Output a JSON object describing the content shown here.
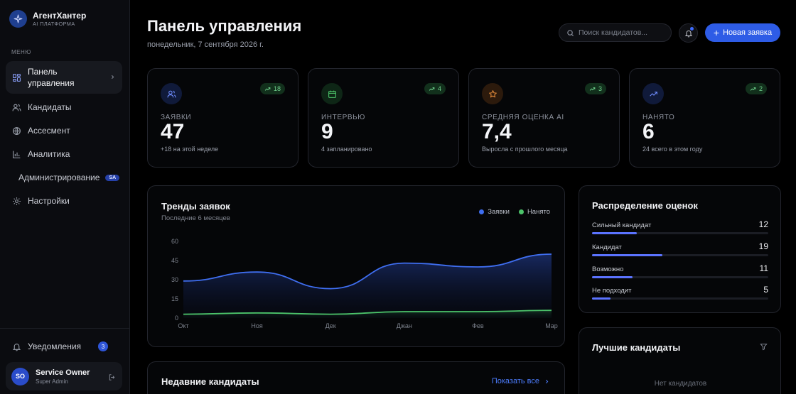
{
  "brand": {
    "name": "АгентХантер",
    "subtitle": "AI ПЛАТФОРМА"
  },
  "menu_label": "МЕНЮ",
  "nav": [
    {
      "label": "Панель управления",
      "icon": "dashboard-icon",
      "active": true
    },
    {
      "label": "Кандидаты",
      "icon": "users-icon"
    },
    {
      "label": "Ассесмент",
      "icon": "globe-icon"
    },
    {
      "label": "Аналитика",
      "icon": "bar-chart-icon"
    },
    {
      "label": "Администрирование",
      "badge": "SA"
    },
    {
      "label": "Настройки",
      "icon": "gear-icon"
    }
  ],
  "notifications": {
    "label": "Уведомления",
    "count": "3"
  },
  "user": {
    "initials": "SO",
    "name": "Service Owner",
    "role": "Super Admin"
  },
  "header": {
    "title": "Панель управления",
    "date": "понедельник, 7 сентября 2026 г.",
    "search_placeholder": "Поиск кандидатов...",
    "new_button": "Новая заявка"
  },
  "stats": [
    {
      "label": "ЗАЯВКИ",
      "value": "47",
      "sub": "+18 на этой неделе",
      "trend": "18",
      "icon": "users-icon",
      "color": "#5b7fff"
    },
    {
      "label": "ИНТЕРВЬЮ",
      "value": "9",
      "sub": "4 запланировано",
      "trend": "4",
      "icon": "calendar-icon",
      "color": "#4cc36a"
    },
    {
      "label": "СРЕДНЯЯ ОЦЕНКА AI",
      "value": "7,4",
      "sub": "Выросла с прошлого месяца",
      "trend": "3",
      "icon": "star-icon",
      "color": "#e0893a"
    },
    {
      "label": "НАНЯТО",
      "value": "6",
      "sub": "24 всего в этом году",
      "trend": "2",
      "icon": "trending-up-icon",
      "color": "#5b7fff"
    }
  ],
  "trends": {
    "title": "Тренды заявок",
    "subtitle": "Последние 6 месяцев",
    "chart_data": {
      "type": "area",
      "categories": [
        "Окт",
        "Ноя",
        "Дек",
        "Джан",
        "Фев",
        "Мар"
      ],
      "yticks": [
        "0",
        "15",
        "30",
        "45",
        "60"
      ],
      "ylim": [
        0,
        60
      ],
      "grid": false,
      "legend": "top-right",
      "series": [
        {
          "name": "Заявки",
          "color": "#3f6ef0",
          "values": [
            29,
            36,
            23,
            43,
            40,
            50
          ]
        },
        {
          "name": "Нанято",
          "color": "#4cc36a",
          "values": [
            3,
            4,
            3,
            5,
            5,
            6
          ]
        }
      ]
    }
  },
  "distribution": {
    "title": "Распределение оценок",
    "max": 19,
    "items": [
      {
        "label": "Сильный кандидат",
        "value": "12",
        "count": 12
      },
      {
        "label": "Кандидат",
        "value": "19",
        "count": 19
      },
      {
        "label": "Возможно",
        "value": "11",
        "count": 11
      },
      {
        "label": "Не подходит",
        "value": "5",
        "count": 5
      }
    ]
  },
  "top_candidates": {
    "title": "Лучшие кандидаты",
    "empty": "Нет кандидатов"
  },
  "recent": {
    "title": "Недавние кандидаты",
    "show_all": "Показать все"
  }
}
